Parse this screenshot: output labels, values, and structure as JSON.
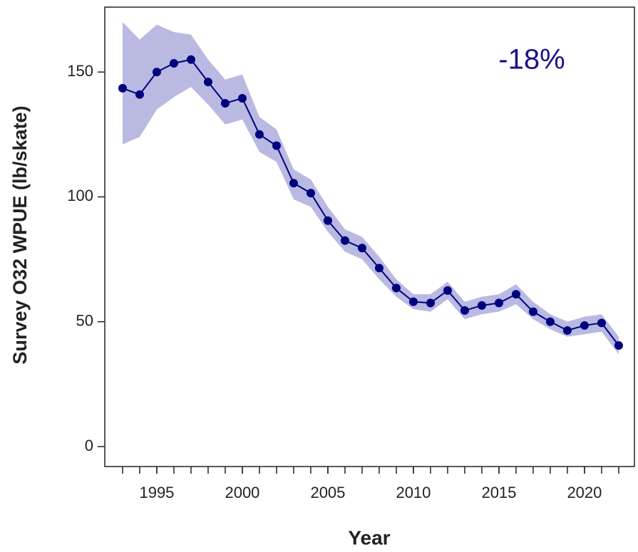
{
  "chart_data": {
    "type": "line",
    "x_label": "Year",
    "y_label": "Survey O32 WPUE (lb/skate)",
    "annotation": "-18%",
    "x": [
      1993,
      1994,
      1995,
      1996,
      1997,
      1998,
      1999,
      2000,
      2001,
      2002,
      2003,
      2004,
      2005,
      2006,
      2007,
      2008,
      2009,
      2010,
      2011,
      2012,
      2013,
      2014,
      2015,
      2016,
      2017,
      2018,
      2019,
      2020,
      2021,
      2022
    ],
    "series": [
      {
        "color": "#00007f",
        "band_color": "#b9b9e2",
        "values": [
          143.5,
          141,
          150,
          153.5,
          155,
          146,
          137.5,
          139.5,
          125,
          120.5,
          105.5,
          101.5,
          90.5,
          82.5,
          79.5,
          71.5,
          63.5,
          58,
          57.5,
          62.5,
          54.5,
          56.5,
          57.5,
          61,
          54,
          50,
          46.5,
          48.5,
          49.5,
          40.5
        ],
        "lower": [
          121,
          124,
          135,
          140,
          144,
          137,
          129,
          131,
          118,
          114,
          99,
          96,
          86,
          78,
          75,
          67,
          60,
          55,
          54,
          59,
          51,
          53,
          54,
          57,
          51,
          47,
          44,
          45,
          46,
          37
        ],
        "upper": [
          170,
          163,
          169,
          166,
          165,
          155,
          147,
          149,
          132,
          127,
          111,
          107,
          96,
          87,
          84,
          76,
          67,
          61,
          61,
          66,
          58,
          60,
          61,
          65,
          58,
          53,
          50,
          52,
          53,
          44
        ]
      }
    ],
    "xlim": [
      1991.96,
      2022.92
    ],
    "ylim": [
      -8,
      176
    ],
    "xticks": [
      1995,
      2000,
      2005,
      2010,
      2015,
      2020
    ],
    "yticks": [
      0,
      50,
      100,
      150
    ]
  }
}
